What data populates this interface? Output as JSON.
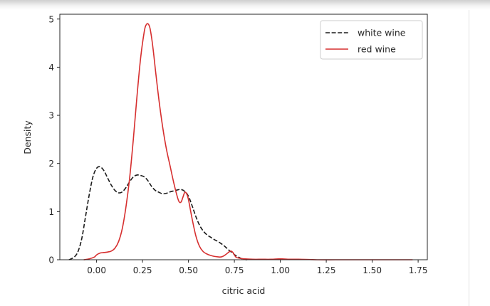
{
  "chart_data": {
    "type": "line",
    "title": "",
    "xlabel": "citric acid",
    "ylabel": "Density",
    "xlim": [
      -0.2,
      1.8
    ],
    "ylim": [
      0,
      5.1
    ],
    "x_ticks": [
      0.0,
      0.25,
      0.5,
      0.75,
      1.0,
      1.25,
      1.5,
      1.75
    ],
    "x_tick_labels": [
      "0.00",
      "0.25",
      "0.50",
      "0.75",
      "1.00",
      "1.25",
      "1.50",
      "1.75"
    ],
    "y_ticks": [
      0,
      1,
      2,
      3,
      4,
      5
    ],
    "y_tick_labels": [
      "0",
      "1",
      "2",
      "3",
      "4",
      "5"
    ],
    "grid": false,
    "legend_position": "top-right",
    "series": [
      {
        "name": "white wine",
        "color": "#1a1a1a",
        "line_style": "dashed",
        "x": [
          -0.15,
          -0.12,
          -0.1,
          -0.08,
          -0.06,
          -0.04,
          -0.02,
          0.0,
          0.02,
          0.04,
          0.06,
          0.08,
          0.1,
          0.12,
          0.14,
          0.16,
          0.18,
          0.2,
          0.22,
          0.24,
          0.26,
          0.28,
          0.3,
          0.32,
          0.34,
          0.36,
          0.38,
          0.4,
          0.42,
          0.44,
          0.46,
          0.48,
          0.5,
          0.52,
          0.54,
          0.56,
          0.58,
          0.6,
          0.62,
          0.64,
          0.66,
          0.68,
          0.7,
          0.72,
          0.74,
          0.76,
          0.78,
          0.8,
          0.82
        ],
        "y": [
          0.0,
          0.06,
          0.18,
          0.45,
          0.9,
          1.35,
          1.72,
          1.9,
          1.93,
          1.85,
          1.7,
          1.55,
          1.44,
          1.39,
          1.41,
          1.5,
          1.62,
          1.72,
          1.76,
          1.75,
          1.72,
          1.64,
          1.52,
          1.44,
          1.4,
          1.37,
          1.38,
          1.41,
          1.43,
          1.45,
          1.46,
          1.42,
          1.32,
          1.12,
          0.9,
          0.72,
          0.6,
          0.52,
          0.47,
          0.42,
          0.38,
          0.33,
          0.27,
          0.2,
          0.14,
          0.08,
          0.04,
          0.01,
          0.0
        ]
      },
      {
        "name": "red wine",
        "color": "#d62f2f",
        "line_style": "solid",
        "x": [
          -0.07,
          -0.05,
          -0.03,
          -0.01,
          0.0,
          0.02,
          0.04,
          0.06,
          0.08,
          0.1,
          0.12,
          0.14,
          0.16,
          0.18,
          0.2,
          0.22,
          0.24,
          0.26,
          0.27,
          0.28,
          0.29,
          0.3,
          0.31,
          0.32,
          0.34,
          0.36,
          0.38,
          0.4,
          0.42,
          0.44,
          0.45,
          0.46,
          0.47,
          0.48,
          0.49,
          0.5,
          0.52,
          0.54,
          0.56,
          0.58,
          0.6,
          0.62,
          0.64,
          0.66,
          0.68,
          0.7,
          0.72,
          0.73,
          0.74,
          0.75,
          0.76,
          0.78,
          0.8,
          0.85,
          0.9,
          0.95,
          1.0,
          1.05,
          1.1,
          1.2,
          1.3,
          1.4,
          1.5,
          1.6,
          1.72
        ],
        "y": [
          0.0,
          0.01,
          0.03,
          0.06,
          0.1,
          0.14,
          0.15,
          0.16,
          0.18,
          0.24,
          0.38,
          0.65,
          1.1,
          1.7,
          2.5,
          3.4,
          4.2,
          4.75,
          4.88,
          4.9,
          4.82,
          4.6,
          4.3,
          3.95,
          3.3,
          2.75,
          2.3,
          1.95,
          1.6,
          1.3,
          1.2,
          1.2,
          1.3,
          1.4,
          1.37,
          1.25,
          0.85,
          0.5,
          0.28,
          0.17,
          0.12,
          0.09,
          0.07,
          0.06,
          0.06,
          0.1,
          0.16,
          0.18,
          0.16,
          0.1,
          0.05,
          0.03,
          0.02,
          0.01,
          0.01,
          0.01,
          0.02,
          0.01,
          0.01,
          0.0,
          0.0,
          0.0,
          0.0,
          0.0,
          0.0
        ]
      }
    ]
  }
}
